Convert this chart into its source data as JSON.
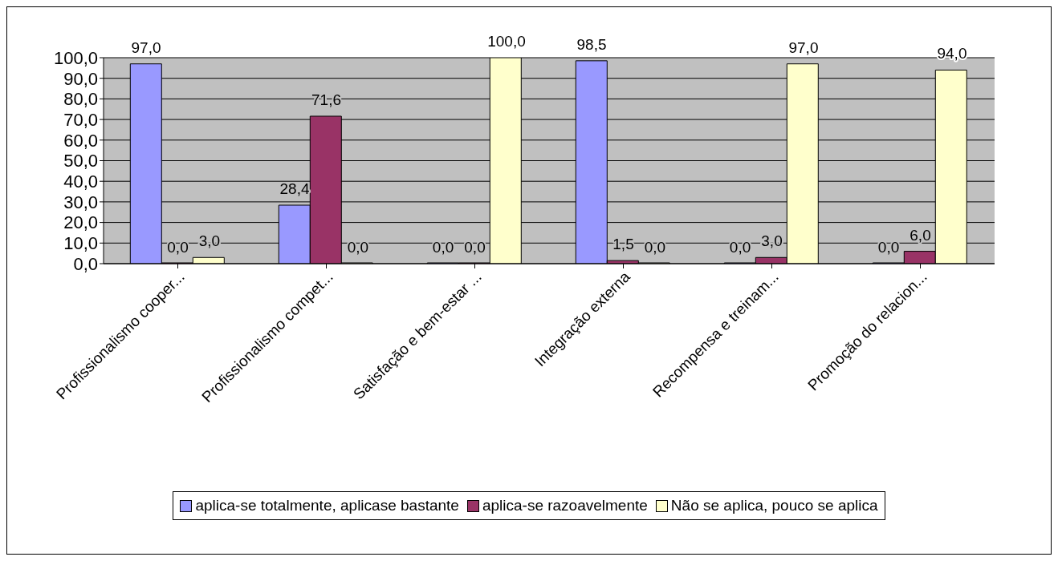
{
  "chart_data": {
    "type": "bar",
    "categories": [
      "Profissionalismo cooper...",
      "Profissionalismo compet...",
      "Satisfação e bem-estar ...",
      "Integração externa",
      "Recompensa e treinam...",
      "Promoção do relacion..."
    ],
    "series": [
      {
        "name": "aplica-se totalmente, aplicase bastante",
        "color": "#9999ff",
        "values": [
          97.0,
          28.4,
          0.0,
          98.5,
          0.0,
          0.0
        ],
        "value_labels": [
          "97,0",
          "28,4",
          "0,0",
          "98,5",
          "0,0",
          "0,0"
        ]
      },
      {
        "name": "aplica-se razoavelmente",
        "color": "#993366",
        "values": [
          0.0,
          71.6,
          0.0,
          1.5,
          3.0,
          6.0
        ],
        "value_labels": [
          "0,0",
          "71,6",
          "0,0",
          "1,5",
          "3,0",
          "6,0"
        ]
      },
      {
        "name": "Não se aplica, pouco se aplica",
        "color": "#ffffcc",
        "values": [
          3.0,
          0.0,
          100.0,
          0.0,
          97.0,
          94.0
        ],
        "value_labels": [
          "3,0",
          "0,0",
          "100,0",
          "0,0",
          "97,0",
          "94,0"
        ]
      }
    ],
    "ylim": [
      0,
      100
    ],
    "yticks": [
      {
        "value": 0,
        "label": "0,0"
      },
      {
        "value": 10,
        "label": "10,0"
      },
      {
        "value": 20,
        "label": "20,0"
      },
      {
        "value": 30,
        "label": "30,0"
      },
      {
        "value": 40,
        "label": "40,0"
      },
      {
        "value": 50,
        "label": "50,0"
      },
      {
        "value": 60,
        "label": "60,0"
      },
      {
        "value": 70,
        "label": "70,0"
      },
      {
        "value": 80,
        "label": "80,0"
      },
      {
        "value": 90,
        "label": "90,0"
      },
      {
        "value": 100,
        "label": "100,0"
      }
    ],
    "grid": "y",
    "legend": "bottom"
  }
}
